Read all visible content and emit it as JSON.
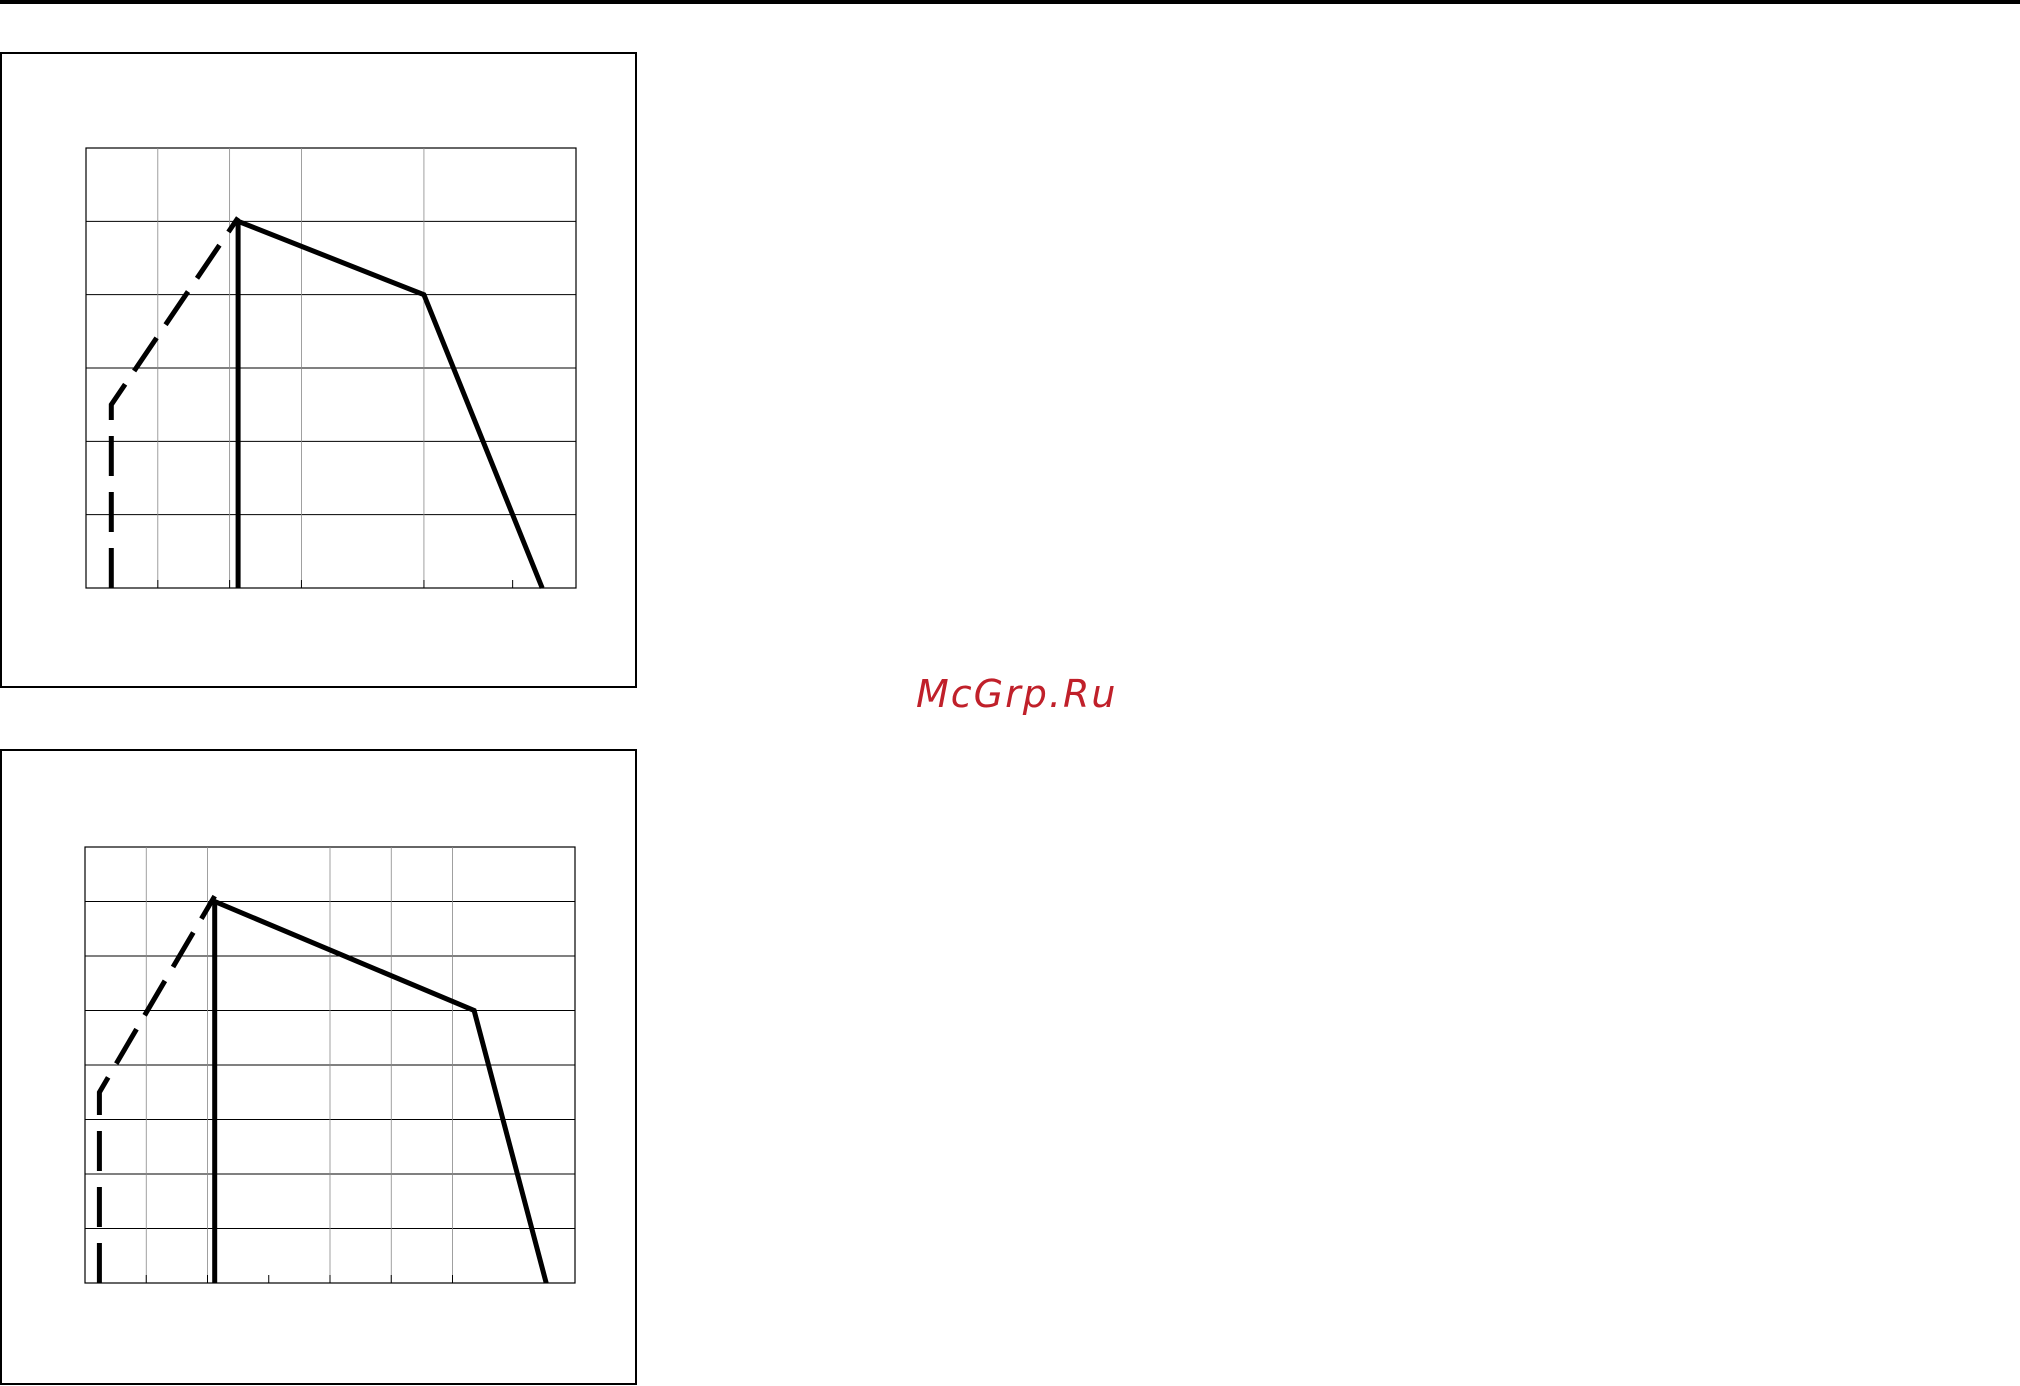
{
  "watermark": "McGrp.Ru",
  "colors": {
    "line": "#000000",
    "grid": "#000000",
    "watermark": "#c0202a"
  },
  "chart_data": [
    {
      "type": "line",
      "title": "",
      "xlabel": "",
      "ylabel": "",
      "xlim": [
        0,
        5.8
      ],
      "ylim": [
        0,
        6
      ],
      "grid": true,
      "series": [
        {
          "style": "solid",
          "x": [
            1.8,
            1.8,
            4.0,
            5.4
          ],
          "y": [
            0,
            5.0,
            4.0,
            0
          ]
        },
        {
          "style": "dashed",
          "x": [
            0.3,
            0.3,
            1.8
          ],
          "y": [
            0,
            2.5,
            5.05
          ]
        }
      ]
    },
    {
      "type": "line",
      "title": "",
      "xlabel": "",
      "ylabel": "",
      "xlim": [
        0,
        6.8
      ],
      "ylim": [
        0,
        8
      ],
      "grid": true,
      "series": [
        {
          "style": "solid",
          "x": [
            1.8,
            1.8,
            5.4,
            6.4
          ],
          "y": [
            0,
            7.0,
            5.0,
            0
          ]
        },
        {
          "style": "dashed",
          "x": [
            0.2,
            0.2,
            1.8
          ],
          "y": [
            0,
            3.5,
            7.1
          ]
        }
      ]
    }
  ]
}
